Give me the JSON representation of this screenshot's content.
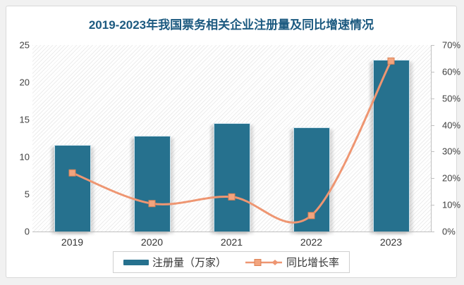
{
  "title": "2019-2023年我国票务相关企业注册量及同比增速情况",
  "legend": {
    "bar_label": "注册量（万家）",
    "line_label": "同比增长率"
  },
  "colors": {
    "bar": "#26718e",
    "line": "#ee9672",
    "marker_fill": "#f2a47e",
    "marker_stroke": "#dd8255",
    "title": "#1c5a80"
  },
  "chart_data": {
    "type": "bar",
    "title": "2019-2023年我国票务相关企业注册量及同比增速情况",
    "categories": [
      "2019",
      "2020",
      "2021",
      "2022",
      "2023"
    ],
    "series": [
      {
        "name": "注册量（万家）",
        "type": "bar",
        "axis": "left",
        "values": [
          11.6,
          12.8,
          14.5,
          14.0,
          23.0
        ]
      },
      {
        "name": "同比增长率",
        "type": "line",
        "axis": "right",
        "values": [
          22,
          10.5,
          13,
          6,
          64
        ]
      }
    ],
    "left_axis": {
      "range": [
        0,
        25
      ],
      "step": 5,
      "ticks": [
        "0",
        "5",
        "10",
        "15",
        "20",
        "25"
      ]
    },
    "right_axis": {
      "range": [
        0,
        70
      ],
      "step": 10,
      "ticks": [
        "0%",
        "10%",
        "20%",
        "30%",
        "40%",
        "50%",
        "60%",
        "70%"
      ]
    },
    "xlabel": "",
    "ylabel": "",
    "grid": false,
    "legend_position": "bottom",
    "plot_background": "diagonal-hatch"
  }
}
